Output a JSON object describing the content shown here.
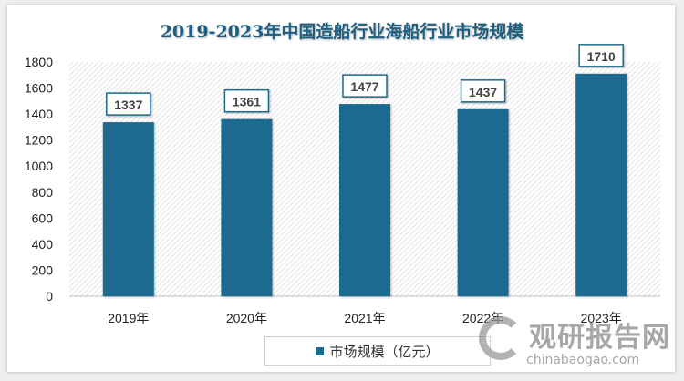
{
  "chart_data": {
    "type": "bar",
    "title": "2019-2023年中国造船行业海船行业市场规模",
    "categories": [
      "2019年",
      "2020年",
      "2021年",
      "2022年",
      "2023年"
    ],
    "series": [
      {
        "name": "市场规模（亿元）",
        "values": [
          1337,
          1361,
          1477,
          1437,
          1710
        ]
      }
    ],
    "ylim": [
      0,
      1800
    ],
    "yticks": [
      0,
      200,
      400,
      600,
      800,
      1000,
      1200,
      1400,
      1600,
      1800
    ],
    "xlabel": "",
    "ylabel": "",
    "legend_position": "bottom",
    "bar_color": "#1b6b8f"
  },
  "watermark": {
    "name": "观研报告网",
    "url": "chinabaogao.com"
  }
}
